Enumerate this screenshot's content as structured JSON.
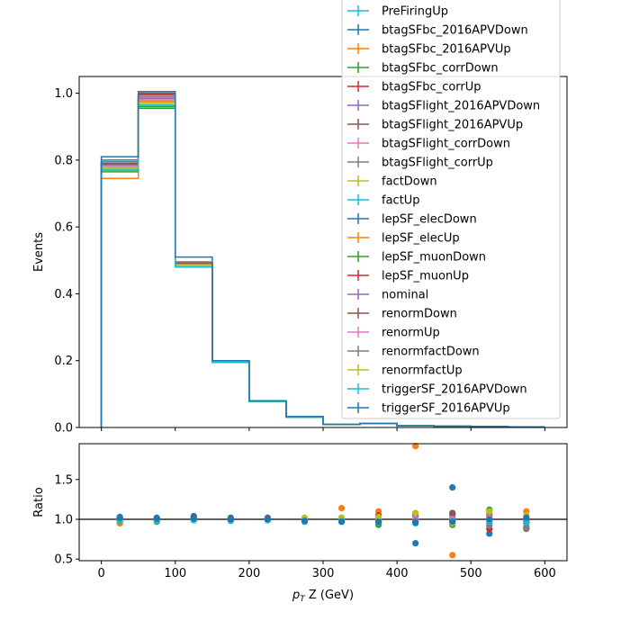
{
  "chart_data": [
    {
      "type": "line",
      "ylabel": "Events",
      "xlim": [
        -30,
        630
      ],
      "ylim": [
        0,
        1.05
      ],
      "yticks": [
        0.0,
        0.2,
        0.4,
        0.6,
        0.8,
        1.0
      ],
      "ytick_labels": [
        "0.0",
        "0.2",
        "0.4",
        "0.6",
        "0.8",
        "1.0"
      ],
      "bin_edges": [
        0,
        50,
        100,
        150,
        200,
        250,
        300,
        350,
        400,
        450,
        500,
        550,
        600
      ],
      "legend_position": "top-right",
      "series": [
        {
          "name": "PreFiringUp",
          "color": "#17becf",
          "values": [
            0.785,
            0.975,
            0.49,
            0.197,
            0.079,
            0.032,
            0.009,
            0.012,
            0.005,
            0.004,
            0.003,
            0.002
          ]
        },
        {
          "name": "btagSFbc_2016APVDown",
          "color": "#1f77b4",
          "values": [
            0.79,
            0.99,
            0.49,
            0.197,
            0.079,
            0.032,
            0.009,
            0.012,
            0.005,
            0.004,
            0.003,
            0.002
          ]
        },
        {
          "name": "btagSFbc_2016APVUp",
          "color": "#ff7f0e",
          "values": [
            0.745,
            0.98,
            0.488,
            0.197,
            0.079,
            0.032,
            0.009,
            0.012,
            0.005,
            0.004,
            0.003,
            0.002
          ]
        },
        {
          "name": "btagSFbc_corrDown",
          "color": "#2ca02c",
          "values": [
            0.77,
            0.955,
            0.485,
            0.195,
            0.078,
            0.031,
            0.009,
            0.012,
            0.005,
            0.004,
            0.003,
            0.002
          ]
        },
        {
          "name": "btagSFbc_corrUp",
          "color": "#d62728",
          "values": [
            0.795,
            0.995,
            0.492,
            0.198,
            0.08,
            0.032,
            0.009,
            0.012,
            0.005,
            0.004,
            0.003,
            0.002
          ]
        },
        {
          "name": "btagSFlight_2016APVDown",
          "color": "#9467bd",
          "values": [
            0.78,
            0.985,
            0.49,
            0.197,
            0.079,
            0.032,
            0.009,
            0.012,
            0.005,
            0.004,
            0.003,
            0.002
          ]
        },
        {
          "name": "btagSFlight_2016APVUp",
          "color": "#8c564b",
          "values": [
            0.785,
            0.99,
            0.492,
            0.197,
            0.079,
            0.032,
            0.009,
            0.012,
            0.005,
            0.004,
            0.003,
            0.002
          ]
        },
        {
          "name": "btagSFlight_corrDown",
          "color": "#e377c2",
          "values": [
            0.775,
            0.98,
            0.488,
            0.196,
            0.079,
            0.032,
            0.009,
            0.012,
            0.005,
            0.004,
            0.003,
            0.002
          ]
        },
        {
          "name": "btagSFlight_corrUp",
          "color": "#7f7f7f",
          "values": [
            0.79,
            0.985,
            0.49,
            0.197,
            0.079,
            0.032,
            0.009,
            0.012,
            0.005,
            0.004,
            0.003,
            0.002
          ]
        },
        {
          "name": "factDown",
          "color": "#bcbd22",
          "values": [
            0.78,
            0.975,
            0.488,
            0.197,
            0.079,
            0.032,
            0.009,
            0.012,
            0.005,
            0.004,
            0.003,
            0.002
          ]
        },
        {
          "name": "factUp",
          "color": "#17becf",
          "values": [
            0.775,
            0.97,
            0.487,
            0.196,
            0.079,
            0.032,
            0.009,
            0.012,
            0.005,
            0.004,
            0.003,
            0.002
          ]
        },
        {
          "name": "lepSF_elecDown",
          "color": "#1f77b4",
          "values": [
            0.8,
            1.0,
            0.495,
            0.198,
            0.08,
            0.032,
            0.009,
            0.012,
            0.005,
            0.004,
            0.003,
            0.002
          ]
        },
        {
          "name": "lepSF_elecUp",
          "color": "#ff7f0e",
          "values": [
            0.775,
            0.975,
            0.486,
            0.196,
            0.079,
            0.031,
            0.009,
            0.012,
            0.005,
            0.004,
            0.003,
            0.002
          ]
        },
        {
          "name": "lepSF_muonDown",
          "color": "#2ca02c",
          "values": [
            0.765,
            0.96,
            0.485,
            0.195,
            0.078,
            0.031,
            0.009,
            0.012,
            0.005,
            0.004,
            0.003,
            0.002
          ]
        },
        {
          "name": "lepSF_muonUp",
          "color": "#d62728",
          "values": [
            0.795,
            1.0,
            0.495,
            0.198,
            0.08,
            0.032,
            0.009,
            0.012,
            0.005,
            0.004,
            0.003,
            0.002
          ]
        },
        {
          "name": "nominal",
          "color": "#9467bd",
          "values": [
            0.785,
            0.985,
            0.49,
            0.197,
            0.079,
            0.032,
            0.009,
            0.012,
            0.005,
            0.004,
            0.003,
            0.002
          ]
        },
        {
          "name": "renormDown",
          "color": "#8c564b",
          "values": [
            0.79,
            0.99,
            0.492,
            0.197,
            0.079,
            0.032,
            0.009,
            0.012,
            0.005,
            0.004,
            0.003,
            0.002
          ]
        },
        {
          "name": "renormUp",
          "color": "#e377c2",
          "values": [
            0.78,
            0.98,
            0.488,
            0.197,
            0.079,
            0.032,
            0.009,
            0.012,
            0.005,
            0.004,
            0.003,
            0.002
          ]
        },
        {
          "name": "renormfactDown",
          "color": "#7f7f7f",
          "values": [
            0.795,
            0.99,
            0.495,
            0.198,
            0.079,
            0.032,
            0.009,
            0.012,
            0.005,
            0.004,
            0.003,
            0.002
          ]
        },
        {
          "name": "renormfactUp",
          "color": "#bcbd22",
          "values": [
            0.775,
            0.97,
            0.485,
            0.196,
            0.078,
            0.032,
            0.009,
            0.012,
            0.005,
            0.004,
            0.003,
            0.002
          ]
        },
        {
          "name": "triggerSF_2016APVDown",
          "color": "#17becf",
          "values": [
            0.77,
            0.965,
            0.48,
            0.195,
            0.078,
            0.031,
            0.009,
            0.012,
            0.005,
            0.004,
            0.003,
            0.002
          ]
        },
        {
          "name": "triggerSF_2016APVUp",
          "color": "#1f77b4",
          "values": [
            0.81,
            1.005,
            0.51,
            0.2,
            0.08,
            0.033,
            0.009,
            0.012,
            0.005,
            0.004,
            0.003,
            0.002
          ]
        }
      ]
    },
    {
      "type": "scatter",
      "xlabel": "$p_T$ Z (GeV)",
      "xlabel_parts": {
        "p": "p",
        "sub": "T",
        "rest": " Z (GeV)"
      },
      "ylabel": "Ratio",
      "xlim": [
        -30,
        630
      ],
      "ylim": [
        0.48,
        1.95
      ],
      "yticks": [
        0.5,
        1.0,
        1.5
      ],
      "ytick_labels": [
        "0.5",
        "1.0",
        "1.5"
      ],
      "xticks": [
        0,
        100,
        200,
        300,
        400,
        500,
        600
      ],
      "xtick_labels": [
        "0",
        "100",
        "200",
        "300",
        "400",
        "500",
        "600"
      ],
      "reference_line": 1.0,
      "x": [
        25,
        75,
        125,
        175,
        225,
        275,
        325,
        375,
        425,
        475,
        525,
        575
      ],
      "series": [
        {
          "name": "btagSFbc_2016APVUp",
          "color": "#ff7f0e",
          "values": [
            0.95,
            0.99,
            1.0,
            0.99,
            1.0,
            1.0,
            1.14,
            1.1,
            1.92,
            0.55,
            1.08,
            1.1
          ]
        },
        {
          "name": "btagSFbc_2016APVDown",
          "color": "#1f77b4",
          "values": [
            1.03,
            1.02,
            1.04,
            1.02,
            1.02,
            1.01,
            1.0,
            1.0,
            0.7,
            1.4,
            0.82,
            0.9
          ]
        },
        {
          "name": "btagSFbc_corrDown",
          "color": "#2ca02c",
          "values": [
            0.98,
            0.97,
            0.99,
            0.99,
            0.99,
            0.98,
            0.97,
            0.93,
            1.07,
            0.93,
            1.12,
            0.95
          ]
        },
        {
          "name": "btagSFbc_corrUp",
          "color": "#d62728",
          "values": [
            1.01,
            1.01,
            1.02,
            1.01,
            1.01,
            1.0,
            1.02,
            1.05,
            1.05,
            1.06,
            0.88,
            0.98
          ]
        },
        {
          "name": "btagSFlight_2016APVDown",
          "color": "#9467bd",
          "values": [
            0.99,
            1.0,
            1.0,
            1.0,
            1.0,
            1.0,
            1.0,
            1.02,
            1.04,
            1.02,
            0.95,
            1.0
          ]
        },
        {
          "name": "btagSFlight_2016APVUp",
          "color": "#8c564b",
          "values": [
            1.0,
            1.0,
            1.01,
            1.0,
            1.0,
            1.0,
            0.99,
            0.97,
            0.96,
            1.08,
            1.04,
            0.88
          ]
        },
        {
          "name": "btagSFlight_corrDown",
          "color": "#e377c2",
          "values": [
            0.99,
            0.99,
            1.0,
            1.0,
            1.0,
            1.0,
            1.0,
            1.0,
            1.0,
            1.0,
            1.02,
            1.02
          ]
        },
        {
          "name": "btagSFlight_corrUp",
          "color": "#7f7f7f",
          "values": [
            1.0,
            1.0,
            1.0,
            1.0,
            1.0,
            1.01,
            0.99,
            0.98,
            0.98,
            0.97,
            0.92,
            0.89
          ]
        },
        {
          "name": "factDown",
          "color": "#bcbd22",
          "values": [
            0.99,
            0.99,
            1.0,
            0.99,
            1.0,
            1.02,
            1.02,
            1.03,
            1.08,
            0.95,
            1.1,
            1.05
          ]
        },
        {
          "name": "factUp",
          "color": "#17becf",
          "values": [
            0.98,
            0.98,
            0.99,
            0.98,
            0.99,
            0.97,
            0.98,
            0.96,
            0.95,
            0.98,
            0.97,
            0.96
          ]
        },
        {
          "name": "lepSF_elecDown",
          "color": "#1f77b4",
          "values": [
            1.02,
            1.01,
            1.01,
            1.0,
            1.0,
            0.98,
            0.97,
            0.97,
            0.96,
            0.97,
            1.0,
            1.02
          ]
        }
      ]
    }
  ]
}
